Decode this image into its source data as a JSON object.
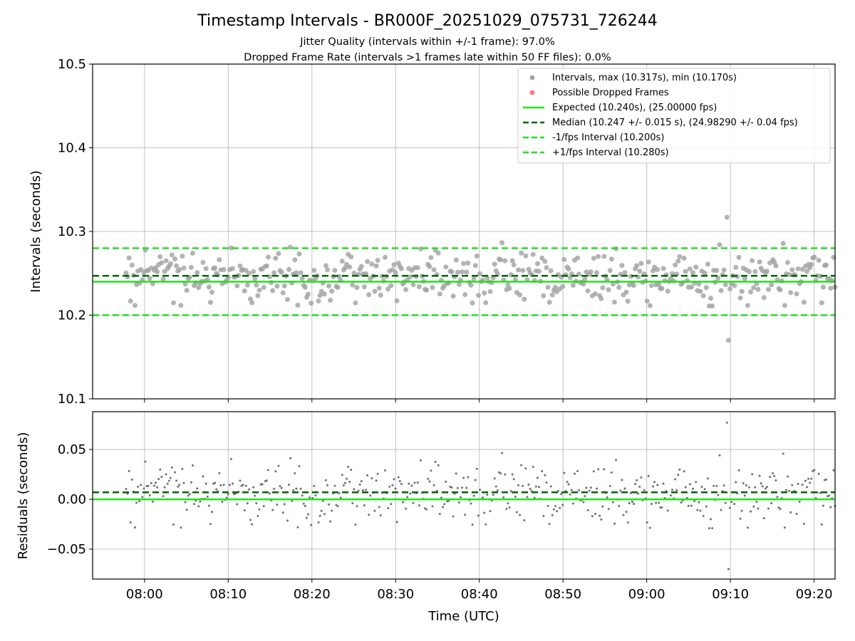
{
  "chart_data": [
    {
      "type": "scatter",
      "title": "Timestamp Intervals - BR000F_20251029_075731_726244",
      "subtitles": [
        "Jitter Quality (intervals within +/-1 frame): 97.0%",
        "Dropped Frame Rate (intervals >1 frames late within 50 FF files): 0.0%"
      ],
      "ylabel": "Intervals (seconds)",
      "xlabel": "",
      "ylim": [
        10.1,
        10.5
      ],
      "yticks": [
        10.1,
        10.2,
        10.3,
        10.4,
        10.5
      ],
      "ytick_labels": [
        "10.1",
        "10.2",
        "10.3",
        "10.4",
        "10.5"
      ],
      "xlim_minutes": [
        -6.2,
        82.5
      ],
      "grid": true,
      "legend_position": "top-right",
      "legend": [
        "Intervals, max (10.317s), min (10.170s)",
        "Possible Dropped Frames",
        "Expected (10.240s), (25.00000 fps)",
        "Median (10.247 +/- 0.015 s), (24.98290 +/- 0.04 fps)",
        "-1/fps Interval (10.200s)",
        "+1/fps Interval (10.280s)"
      ],
      "series": [
        {
          "name": "Intervals",
          "color": "#a0a0a0",
          "n_points": 480,
          "time_start_minutes": -2.2,
          "time_end_minutes": 82.5,
          "max": 10.317,
          "min": 10.17,
          "median": 10.247,
          "std": 0.015
        },
        {
          "name": "Possible Dropped Frames",
          "color": "#ff5b5b",
          "values": []
        }
      ],
      "hlines": [
        {
          "name": "Expected",
          "value": 10.24,
          "color": "#20e020",
          "style": "solid"
        },
        {
          "name": "Median",
          "value": 10.247,
          "color": "#006400",
          "style": "dashed"
        },
        {
          "name": "-1/fps Interval",
          "value": 10.2,
          "color": "#20e020",
          "style": "dashed"
        },
        {
          "name": "+1/fps Interval",
          "value": 10.28,
          "color": "#20e020",
          "style": "dashed"
        }
      ]
    },
    {
      "type": "scatter",
      "ylabel": "Residuals (seconds)",
      "xlabel": "Time (UTC)",
      "ylim": [
        -0.08,
        0.088
      ],
      "yticks": [
        -0.05,
        0.0,
        0.05
      ],
      "ytick_labels": [
        "−0.05",
        "0.00",
        "0.05"
      ],
      "xticks_minutes": [
        0,
        10,
        20,
        30,
        40,
        50,
        60,
        70,
        80
      ],
      "xtick_labels": [
        "08:00",
        "08:10",
        "08:20",
        "08:30",
        "08:40",
        "08:50",
        "09:00",
        "09:10",
        "09:20"
      ],
      "grid": true,
      "series": [
        {
          "name": "Residuals",
          "color": "#707070",
          "n_points": 480,
          "max": 0.077,
          "min": -0.07
        }
      ],
      "hlines": [
        {
          "name": "Zero",
          "value": 0.0,
          "color": "#20e020",
          "style": "solid"
        },
        {
          "name": "Median offset",
          "value": 0.007,
          "color": "#006400",
          "style": "dashed"
        }
      ]
    }
  ]
}
